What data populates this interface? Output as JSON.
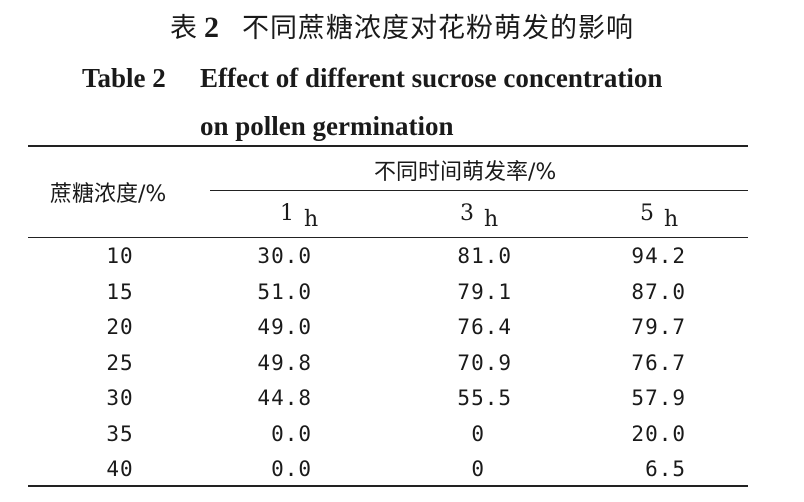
{
  "caption": {
    "cn_label": "表",
    "cn_number": "2",
    "cn_title": "不同蔗糖浓度对花粉萌发的影响",
    "en_label": "Table 2",
    "en_title_line1": "Effect of different sucrose concentration",
    "en_title_line2": "on pollen germination"
  },
  "table": {
    "row_header": "蔗糖浓度/%",
    "group_header": "不同时间萌发率/%",
    "columns": [
      {
        "num": "1",
        "unit": "h"
      },
      {
        "num": "3",
        "unit": "h"
      },
      {
        "num": "5",
        "unit": "h"
      }
    ],
    "rows": [
      {
        "conc": "10",
        "v1": "30.0",
        "v3": "81.0",
        "v5": "94.2"
      },
      {
        "conc": "15",
        "v1": "51.0",
        "v3": "79.1",
        "v5": "87.0"
      },
      {
        "conc": "20",
        "v1": "49.0",
        "v3": "76.4",
        "v5": "79.7"
      },
      {
        "conc": "25",
        "v1": "49.8",
        "v3": "70.9",
        "v5": "76.7"
      },
      {
        "conc": "30",
        "v1": "44.8",
        "v3": "55.5",
        "v5": "57.9"
      },
      {
        "conc": "35",
        "v1": "0.0",
        "v3": "0",
        "v5": "20.0"
      },
      {
        "conc": "40",
        "v1": "0.0",
        "v3": "0",
        "v5": "6.5"
      }
    ]
  }
}
